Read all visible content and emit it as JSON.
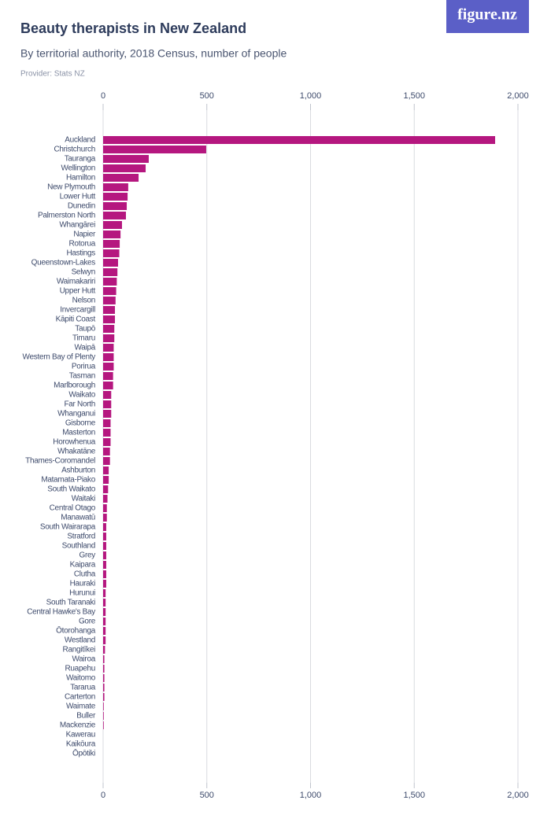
{
  "brand": "figure.nz",
  "chart_data": {
    "type": "bar",
    "orientation": "horizontal",
    "title": "Beauty therapists in New Zealand",
    "subtitle": "By territorial authority, 2018 Census, number of people",
    "source": "Provider: Stats NZ",
    "color": "#b5177f",
    "grid": true,
    "xlim": [
      0,
      2000
    ],
    "xticks": [
      0,
      500,
      {
        "value": 1000,
        "label": "1,000"
      },
      {
        "value": 1500,
        "label": "1,500"
      },
      {
        "value": 2000,
        "label": "2,000"
      }
    ],
    "categories": [
      "Auckland",
      "Christchurch",
      "Tauranga",
      "Wellington",
      "Hamilton",
      "New Plymouth",
      "Lower Hutt",
      "Dunedin",
      "Palmerston North",
      "Whangārei",
      "Napier",
      "Rotorua",
      "Hastings",
      "Queenstown-Lakes",
      "Selwyn",
      "Waimakariri",
      "Upper Hutt",
      "Nelson",
      "Invercargill",
      "Kāpiti Coast",
      "Taupō",
      "Timaru",
      "Waipā",
      "Western Bay of Plenty",
      "Porirua",
      "Tasman",
      "Marlborough",
      "Waikato",
      "Far North",
      "Whanganui",
      "Gisborne",
      "Masterton",
      "Horowhenua",
      "Whakatāne",
      "Thames-Coromandel",
      "Ashburton",
      "Matamata-Piako",
      "South Waikato",
      "Waitaki",
      "Central Otago",
      "Manawatū",
      "South Wairarapa",
      "Stratford",
      "Southland",
      "Grey",
      "Kaipara",
      "Clutha",
      "Hauraki",
      "Hurunui",
      "South Taranaki",
      "Central Hawke's Bay",
      "Gore",
      "Ōtorohanga",
      "Westland",
      "Rangitīkei",
      "Wairoa",
      "Ruapehu",
      "Waitomo",
      "Tararua",
      "Carterton",
      "Waimate",
      "Buller",
      "Mackenzie",
      "Kawerau",
      "Kaikōura",
      "Ōpōtiki"
    ],
    "values": [
      1890,
      497,
      220,
      205,
      171,
      121,
      118,
      114,
      110,
      91,
      84,
      80,
      78,
      72,
      69,
      66,
      63,
      60,
      57,
      57,
      54,
      54,
      51,
      51,
      51,
      48,
      48,
      39,
      39,
      39,
      36,
      36,
      36,
      33,
      33,
      27,
      27,
      24,
      21,
      18,
      18,
      15,
      15,
      15,
      15,
      15,
      15,
      15,
      12,
      12,
      12,
      12,
      12,
      12,
      9,
      6,
      6,
      6,
      6,
      6,
      3,
      3,
      3,
      0,
      0,
      0
    ]
  }
}
